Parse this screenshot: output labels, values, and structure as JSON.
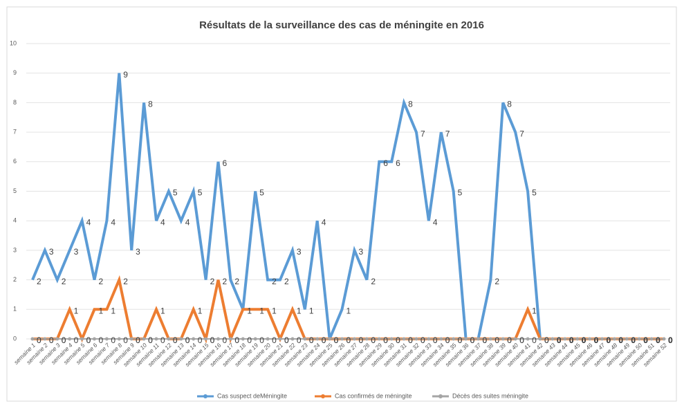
{
  "chart_data": {
    "type": "line",
    "title": "Résultats de la surveillance des cas de méningite en 2016",
    "categories": [
      "semaine 1",
      "semaine 2",
      "semaine 3",
      "semaine 4",
      "semaine 5",
      "semaine 6",
      "semaine 7",
      "semaine 8",
      "semaine 9",
      "semaine 10",
      "semaine 11",
      "semaine 12",
      "semaine 13",
      "semaine 14",
      "semaine 15",
      "semaine 16",
      "semaine 17",
      "semaine 18",
      "semaine 19",
      "semaine 20",
      "semaine 21",
      "semaine 22",
      "semaine 23",
      "semaine 24",
      "semaine 25",
      "semaine 26",
      "semaine 27",
      "semaine 28",
      "semaine 29",
      "semaine 30",
      "semaine 31",
      "semaine 32",
      "semaine 33",
      "semaine 34",
      "semaine 35",
      "semaine 36",
      "semaine 37",
      "semaine 38",
      "semaine 39",
      "semaine 40",
      "semaine 41",
      "semaine 42",
      "semaine 43",
      "semaine 44",
      "semaine 45",
      "semaine 46",
      "semaine 47",
      "semaine 48",
      "semaine 49",
      "semaine 50",
      "semaine 51",
      "semaine 52"
    ],
    "series": [
      {
        "name": "Cas suspect deMéningite",
        "color": "#5b9bd5",
        "values": [
          2,
          3,
          2,
          3,
          4,
          2,
          4,
          9,
          3,
          8,
          4,
          5,
          4,
          5,
          2,
          6,
          2,
          1,
          5,
          2,
          2,
          3,
          1,
          4,
          0,
          1,
          3,
          2,
          6,
          6,
          8,
          7,
          4,
          7,
          5,
          0,
          0,
          2,
          8,
          7,
          5,
          0,
          0,
          0,
          0,
          0,
          0,
          0,
          0,
          0,
          0,
          0
        ]
      },
      {
        "name": "Cas confirmés de méningite",
        "color": "#ed7d31",
        "values": [
          0,
          0,
          0,
          1,
          0,
          1,
          1,
          2,
          0,
          0,
          1,
          0,
          0,
          1,
          0,
          2,
          0,
          1,
          1,
          1,
          0,
          1,
          0,
          0,
          0,
          0,
          0,
          0,
          0,
          0,
          0,
          0,
          0,
          0,
          0,
          0,
          0,
          0,
          0,
          0,
          1,
          0,
          0,
          0,
          0,
          0,
          0,
          0,
          0,
          0,
          0,
          0
        ]
      },
      {
        "name": "Décès des suites méningite",
        "color": "#a5a5a5",
        "values": [
          0,
          0,
          0,
          0,
          0,
          0,
          0,
          0,
          0,
          0,
          0,
          0,
          0,
          0,
          0,
          0,
          0,
          0,
          0,
          0,
          0,
          0,
          0,
          0,
          0,
          0,
          0,
          0,
          0,
          0,
          0,
          0,
          0,
          0,
          0,
          0,
          0,
          0,
          0,
          0,
          0,
          0,
          0,
          0,
          0,
          0,
          0,
          0,
          0,
          0,
          0,
          0
        ]
      }
    ],
    "ylim": [
      0,
      10
    ],
    "yticks": [
      0,
      1,
      2,
      3,
      4,
      5,
      6,
      7,
      8,
      9,
      10
    ],
    "grid": true,
    "legend": "bottom"
  }
}
